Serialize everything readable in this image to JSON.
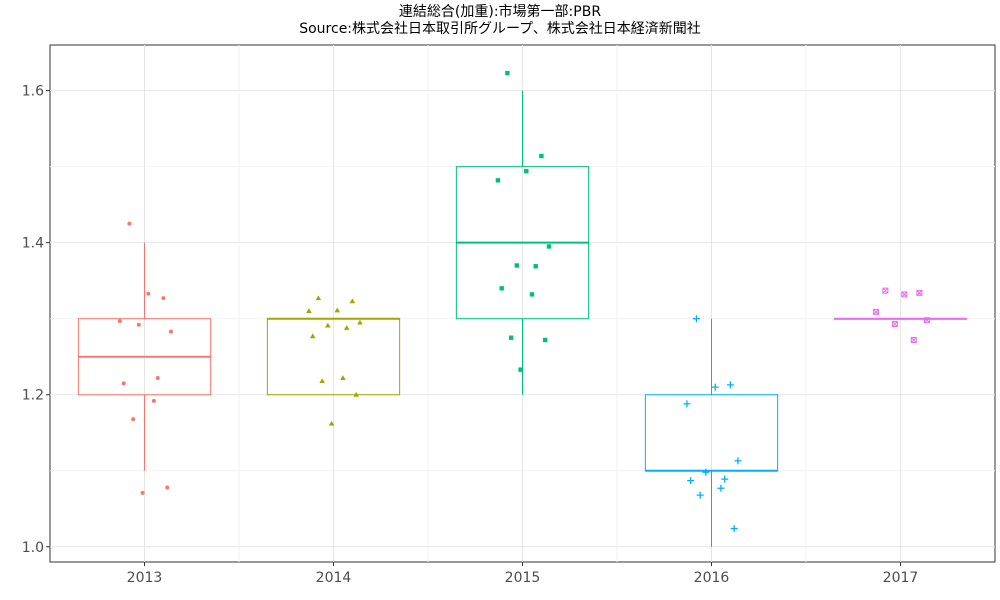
{
  "chart_data": {
    "type": "boxplot",
    "title": "連結総合(加重):市場第一部:PBR",
    "subtitle": "Source:株式会社日本取引所グループ、株式会社日本経済新聞社",
    "xlabel": "",
    "ylabel": "",
    "categories": [
      "2013",
      "2014",
      "2015",
      "2016",
      "2017"
    ],
    "ylim": [
      0.98,
      1.66
    ],
    "yticks": [
      1.0,
      1.2,
      1.4,
      1.6
    ],
    "ytick_labels": [
      "1.0",
      "1.2",
      "1.4",
      "1.6"
    ],
    "grid": true,
    "legend": "none",
    "series": [
      {
        "category": "2013",
        "color": "#F8766D",
        "marker": "circle",
        "box": {
          "q1": 1.2,
          "median": 1.25,
          "q3": 1.3,
          "whisker_low": 1.1,
          "whisker_high": 1.4
        },
        "points": [
          1.425,
          1.327,
          1.333,
          1.297,
          1.283,
          1.292,
          1.222,
          1.215,
          1.192,
          1.168,
          1.078,
          1.071
        ]
      },
      {
        "category": "2014",
        "color": "#A3A500",
        "marker": "triangle",
        "box": {
          "q1": 1.2,
          "median": 1.3,
          "q3": 1.3,
          "whisker_low": 1.2,
          "whisker_high": 1.3
        },
        "points": [
          1.327,
          1.323,
          1.311,
          1.31,
          1.295,
          1.291,
          1.288,
          1.277,
          1.222,
          1.218,
          1.2,
          1.162
        ]
      },
      {
        "category": "2015",
        "color": "#00BF7D",
        "marker": "square",
        "box": {
          "q1": 1.3,
          "median": 1.4,
          "q3": 1.5,
          "whisker_low": 1.2,
          "whisker_high": 1.6
        },
        "points": [
          1.623,
          1.514,
          1.494,
          1.482,
          1.395,
          1.37,
          1.369,
          1.34,
          1.332,
          1.275,
          1.272,
          1.233
        ]
      },
      {
        "category": "2016",
        "color": "#00B0F6",
        "marker": "plus",
        "box": {
          "q1": 1.1,
          "median": 1.1,
          "q3": 1.2,
          "whisker_low": 1.0,
          "whisker_high": 1.3
        },
        "points": [
          1.3,
          1.213,
          1.21,
          1.188,
          1.113,
          1.098,
          1.089,
          1.087,
          1.077,
          1.068,
          1.024
        ]
      },
      {
        "category": "2017",
        "color": "#E76BF3",
        "marker": "square-cross",
        "box": {
          "q1": 1.3,
          "median": 1.3,
          "q3": 1.3,
          "whisker_low": 1.3,
          "whisker_high": 1.3
        },
        "points": [
          1.337,
          1.334,
          1.332,
          1.309,
          1.298,
          1.293,
          1.272
        ]
      }
    ]
  }
}
